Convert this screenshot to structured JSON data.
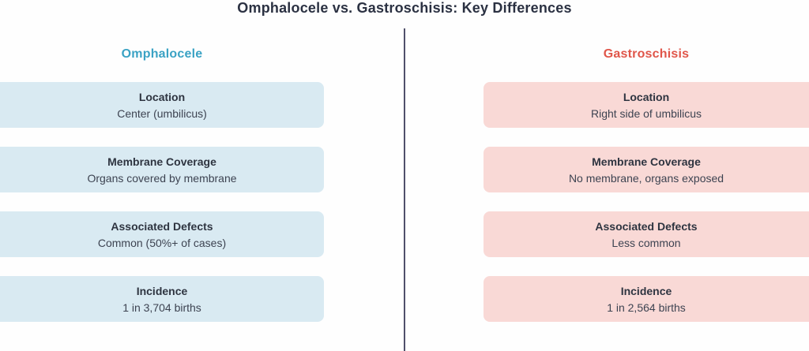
{
  "title": "Omphalocele vs. Gastroschisis: Key Differences",
  "colors": {
    "left_accent": "#3aa2c4",
    "right_accent": "#e0564a",
    "left_card_bg": "#d9eaf2",
    "right_card_bg": "#f9d9d6",
    "title_text": "#2b3142",
    "card_label_text": "#2e3440",
    "card_value_text": "#3d4351",
    "divider": "#50506a"
  },
  "left_column": {
    "header": "Omphalocele",
    "cards": [
      {
        "label": "Location",
        "value": "Center (umbilicus)"
      },
      {
        "label": "Membrane Coverage",
        "value": "Organs covered by membrane"
      },
      {
        "label": "Associated Defects",
        "value": "Common (50%+ of cases)"
      },
      {
        "label": "Incidence",
        "value": "1 in 3,704 births"
      }
    ]
  },
  "right_column": {
    "header": "Gastroschisis",
    "cards": [
      {
        "label": "Location",
        "value": "Right side of umbilicus"
      },
      {
        "label": "Membrane Coverage",
        "value": "No membrane, organs exposed"
      },
      {
        "label": "Associated Defects",
        "value": "Less common"
      },
      {
        "label": "Incidence",
        "value": "1 in 2,564 births"
      }
    ]
  }
}
